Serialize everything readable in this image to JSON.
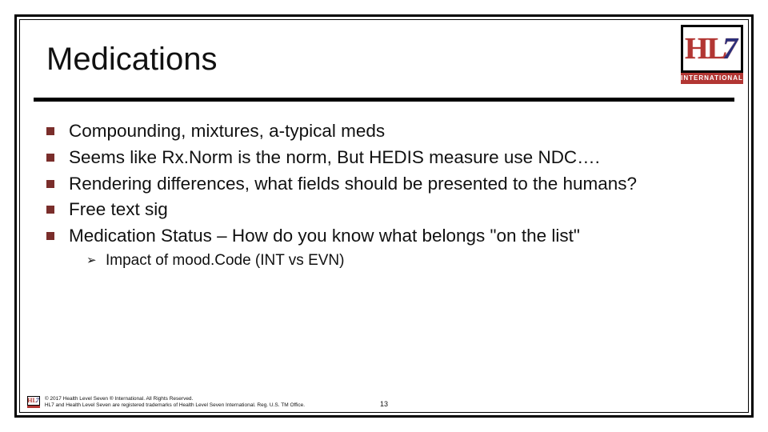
{
  "colors": {
    "bullet": "#7a2e2b",
    "logo_red": "#b23633",
    "logo_blue": "#2a2f7a",
    "text": "#111111",
    "rule": "#000000",
    "background": "#ffffff"
  },
  "logo": {
    "text_h": "HL",
    "text_7": "7",
    "banner": "INTERNATIONAL"
  },
  "title": "Medications",
  "bullets": [
    {
      "text": "Compounding, mixtures, a-typical meds"
    },
    {
      "text": "Seems like Rx.Norm is the norm, But HEDIS measure use NDC…."
    },
    {
      "text": "Rendering differences, what fields should be presented to the humans?"
    },
    {
      "text": "Free text sig"
    },
    {
      "text": "Medication Status – How do you know what belongs \"on the list\"",
      "sub": [
        "Impact of mood.Code (INT vs EVN)"
      ]
    }
  ],
  "footer": {
    "line1": "© 2017 Health Level Seven ® International. All Rights Reserved.",
    "line2": "HL7 and Health Level Seven are registered trademarks of Health Level Seven International. Reg. U.S. TM Office."
  },
  "page_number": "13"
}
